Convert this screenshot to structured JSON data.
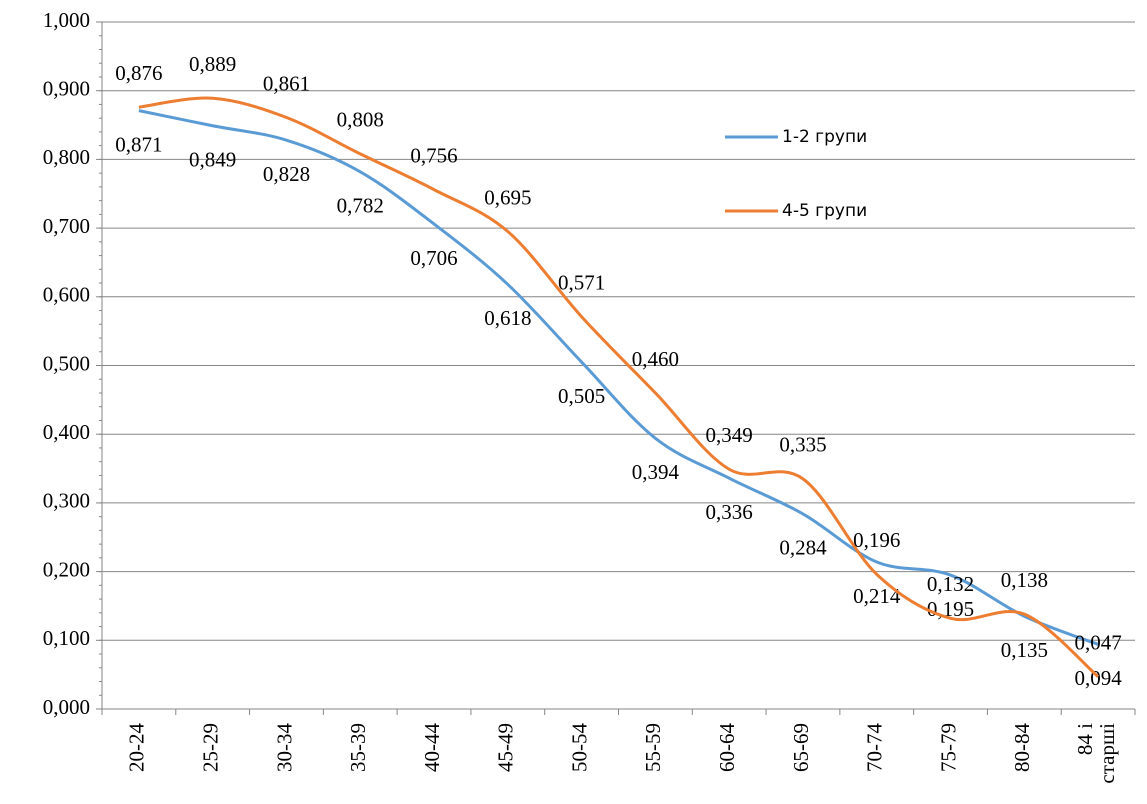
{
  "chart_data": {
    "type": "line",
    "categories": [
      "20-24",
      "25-29",
      "30-34",
      "35-39",
      "40-44",
      "45-49",
      "50-54",
      "55-59",
      "60-64",
      "65-69",
      "70-74",
      "75-79",
      "80-84",
      "84 і старші"
    ],
    "series": [
      {
        "name": "1-2 групи",
        "color": "#5b9bd5",
        "values": [
          0.871,
          0.849,
          0.828,
          0.782,
          0.706,
          0.618,
          0.505,
          0.394,
          0.336,
          0.284,
          0.214,
          0.195,
          0.135,
          0.094
        ],
        "value_labels": [
          "0,871",
          "0,849",
          "0,828",
          "0,782",
          "0,706",
          "0,618",
          "0,505",
          "0,394",
          "0,336",
          "0,284",
          "0,214",
          "0,195",
          "0,135",
          "0,094"
        ]
      },
      {
        "name": "4-5 групи",
        "color": "#ed7d31",
        "values": [
          0.876,
          0.889,
          0.861,
          0.808,
          0.756,
          0.695,
          0.571,
          0.46,
          0.349,
          0.335,
          0.196,
          0.132,
          0.138,
          0.047
        ],
        "value_labels": [
          "0,876",
          "0,889",
          "0,861",
          "0,808",
          "0,756",
          "0,695",
          "0,571",
          "0,460",
          "0,349",
          "0,335",
          "0,196",
          "0,132",
          "0,138",
          "0,047"
        ]
      }
    ],
    "ylim": [
      0,
      1
    ],
    "yticks": [
      {
        "value": 0,
        "label": "0,000"
      },
      {
        "value": 0.1,
        "label": "0,100"
      },
      {
        "value": 0.2,
        "label": "0,200"
      },
      {
        "value": 0.3,
        "label": "0,300"
      },
      {
        "value": 0.4,
        "label": "0,400"
      },
      {
        "value": 0.5,
        "label": "0,500"
      },
      {
        "value": 0.6,
        "label": "0,600"
      },
      {
        "value": 0.7,
        "label": "0,700"
      },
      {
        "value": 0.8,
        "label": "0,800"
      },
      {
        "value": 0.9,
        "label": "0,900"
      },
      {
        "value": 1,
        "label": "1,000"
      }
    ],
    "grid": true,
    "smooth": true,
    "legend": "right"
  }
}
